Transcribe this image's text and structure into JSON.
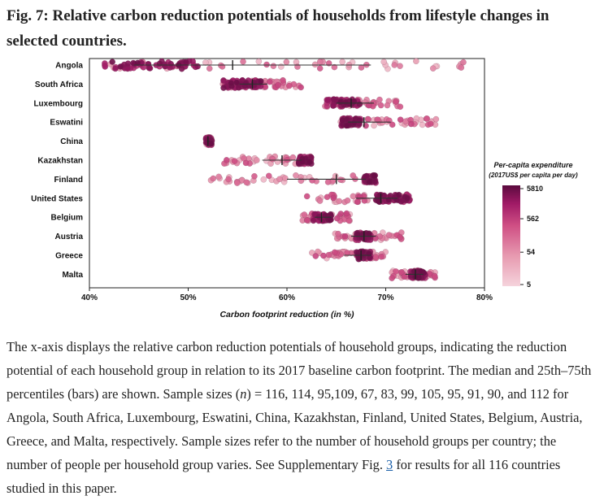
{
  "figure": {
    "label": "Fig. 7:",
    "title": "Relative carbon reduction potentials of households from lifestyle changes in selected countries."
  },
  "chart_data": {
    "type": "strip",
    "xlabel": "Carbon footprint reduction (in %)",
    "xlim": [
      40,
      80
    ],
    "xticks": [
      40,
      50,
      60,
      70,
      80
    ],
    "xtick_labels": [
      "40%",
      "50%",
      "60%",
      "70%",
      "80%"
    ],
    "legend": {
      "title": "Per-capita expenditure",
      "subtitle": "(2017US$ per capita per day)",
      "scale": "log",
      "ticks": [
        5810,
        562,
        54,
        5
      ],
      "tick_labels": [
        "5810",
        "562",
        "54",
        "5"
      ],
      "colors": [
        "#f5d3dc",
        "#e79ab0",
        "#cf4f84",
        "#a01a66",
        "#5b0a3e"
      ]
    },
    "series": [
      {
        "country": "Angola",
        "n": 116,
        "min": 41.5,
        "max": 78.5,
        "q1": 44.5,
        "median": 54.5,
        "q3": 68.5,
        "dense_min": 41.5,
        "dense_max": 51,
        "spread": "wide"
      },
      {
        "country": "South Africa",
        "n": 114,
        "min": 53.5,
        "max": 61.5,
        "q1": 55.2,
        "median": 56.5,
        "q3": 58.0,
        "dense_min": 53.5,
        "dense_max": 57.5,
        "spread": "medium"
      },
      {
        "country": "Luxembourg",
        "n": 95,
        "min": 63.8,
        "max": 71.5,
        "q1": 65.0,
        "median": 66.5,
        "q3": 68.8,
        "dense_min": 64.0,
        "dense_max": 67.5,
        "spread": "medium"
      },
      {
        "country": "Eswatini",
        "n": 109,
        "min": 65.3,
        "max": 75.2,
        "q1": 66.2,
        "median": 67.8,
        "q3": 70.5,
        "dense_min": 65.5,
        "dense_max": 67.5,
        "spread": "medium"
      },
      {
        "country": "China",
        "n": 67,
        "min": 51.8,
        "max": 52.4,
        "q1": 51.9,
        "median": 52.0,
        "q3": 52.2,
        "dense_min": 51.8,
        "dense_max": 52.4,
        "spread": "narrow"
      },
      {
        "country": "Kazakhstan",
        "n": 83,
        "min": 53.5,
        "max": 62.5,
        "q1": 57.5,
        "median": 59.5,
        "q3": 61.5,
        "dense_min": 61.2,
        "dense_max": 62.5,
        "spread": "medium"
      },
      {
        "country": "Finland",
        "n": 99,
        "min": 52.3,
        "max": 69.0,
        "q1": 60.0,
        "median": 65.0,
        "q3": 68.0,
        "dense_min": 67.8,
        "dense_max": 69.0,
        "spread": "wide"
      },
      {
        "country": "United States",
        "n": 105,
        "min": 62.0,
        "max": 72.5,
        "q1": 67.0,
        "median": 69.5,
        "q3": 71.2,
        "dense_min": 69.0,
        "dense_max": 72.5,
        "spread": "medium"
      },
      {
        "country": "Belgium",
        "n": 95,
        "min": 61.5,
        "max": 66.5,
        "q1": 62.8,
        "median": 63.5,
        "q3": 64.5,
        "dense_min": 62.5,
        "dense_max": 64.5,
        "spread": "medium"
      },
      {
        "country": "Austria",
        "n": 91,
        "min": 64.5,
        "max": 72.0,
        "q1": 66.5,
        "median": 67.8,
        "q3": 69.0,
        "dense_min": 67.0,
        "dense_max": 68.5,
        "spread": "medium"
      },
      {
        "country": "Greece",
        "n": 90,
        "min": 62.5,
        "max": 70.0,
        "q1": 65.8,
        "median": 67.5,
        "q3": 68.5,
        "dense_min": 67.0,
        "dense_max": 68.5,
        "spread": "medium"
      },
      {
        "country": "Malta",
        "n": 112,
        "min": 70.5,
        "max": 75.0,
        "q1": 72.0,
        "median": 73.0,
        "q3": 73.8,
        "dense_min": 72.5,
        "dense_max": 74.0,
        "spread": "medium"
      }
    ]
  },
  "caption": {
    "part1": "The x-axis displays the relative carbon reduction potentials of household groups, indicating the reduction potential of each household group in relation to its 2017 baseline carbon footprint. The median and 25th–75th percentiles (bars) are shown. Sample sizes (",
    "n_symbol": "n",
    "part2": ") = 116, 114, 95,109, 67, 83, 99, 105, 95, 91, 90, and 112 for Angola, South Africa, Luxembourg, Eswatini, China, Kazakhstan, Finland, United States, Belgium, Austria, Greece, and Malta, respectively. Sample sizes refer to the number of household groups per country; the number of people per household group varies. See Supplementary Fig. ",
    "link": "3",
    "part3": " for results for all 116 countries studied in this paper."
  }
}
